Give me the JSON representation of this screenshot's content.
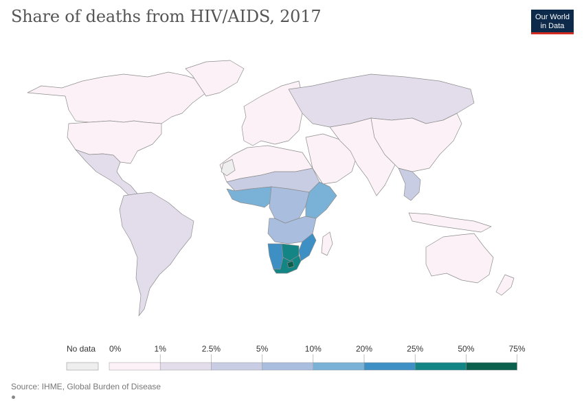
{
  "title": "Share of deaths from HIV/AIDS, 2017",
  "logo": {
    "line1": "Our World",
    "line2": "in Data",
    "bg": "#0d2a4a",
    "accent": "#d42b21"
  },
  "source": "Source: IHME, Global Burden of Disease",
  "legend": {
    "no_data_label": "No data",
    "no_data_color": "#eeeeee",
    "ticks": [
      "0%",
      "1%",
      "2.5%",
      "5%",
      "10%",
      "20%",
      "25%",
      "50%",
      "75%"
    ],
    "colors": [
      "#fcf1f6",
      "#e3ddeb",
      "#c9cde3",
      "#a9bedf",
      "#79b2d6",
      "#3e8fc4",
      "#138585",
      "#0b5f4d"
    ]
  },
  "map": {
    "ocean_color": "#ffffff",
    "border_color": "#8c8c8c",
    "regions": [
      {
        "name": "Canada / Greenland / Alaska",
        "bin": 0
      },
      {
        "name": "United States",
        "bin": 0
      },
      {
        "name": "Mexico & Central America",
        "bin": 1
      },
      {
        "name": "South America",
        "bin": 1
      },
      {
        "name": "Europe",
        "bin": 0
      },
      {
        "name": "Russia",
        "bin": 1
      },
      {
        "name": "Middle East",
        "bin": 0
      },
      {
        "name": "Central & South Asia",
        "bin": 0
      },
      {
        "name": "China & East Asia",
        "bin": 0
      },
      {
        "name": "Southeast Asia",
        "bin": 2
      },
      {
        "name": "Australia",
        "bin": 0
      },
      {
        "name": "North Africa",
        "bin": 0
      },
      {
        "name": "Sahel",
        "bin": 2
      },
      {
        "name": "West Africa coast",
        "bin": 4
      },
      {
        "name": "Central Africa",
        "bin": 3
      },
      {
        "name": "East Africa",
        "bin": 4
      },
      {
        "name": "Tanzania / Zambia",
        "bin": 3
      },
      {
        "name": "Mozambique",
        "bin": 5
      },
      {
        "name": "Namibia",
        "bin": 5
      },
      {
        "name": "Botswana",
        "bin": 6
      },
      {
        "name": "South Africa",
        "bin": 6
      },
      {
        "name": "Lesotho / Eswatini",
        "bin": 7
      },
      {
        "name": "Madagascar",
        "bin": 0
      },
      {
        "name": "Western Sahara",
        "bin": -1
      }
    ]
  }
}
